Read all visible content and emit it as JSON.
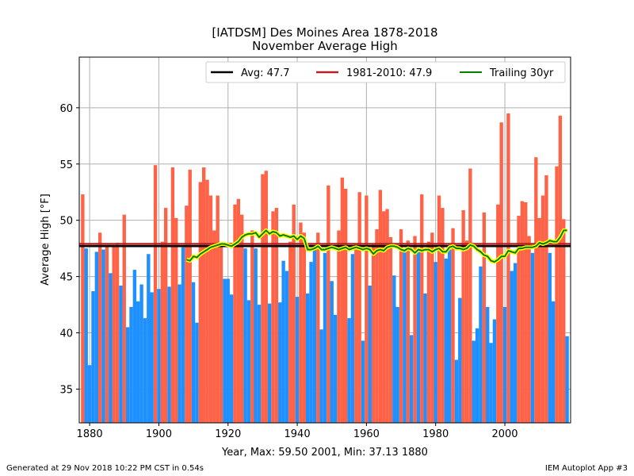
{
  "chart_data": {
    "type": "bar",
    "title": "[IATDSM] Des Moines Area 1878-2018",
    "subtitle": "November Average High",
    "xlabel": "Year, Max: 59.50 2001, Min: 37.13 1880",
    "ylabel": "Average High [°F]",
    "xlim": [
      1877,
      2019
    ],
    "ylim": [
      32,
      64.5
    ],
    "xticks": [
      1880,
      1900,
      1920,
      1940,
      1960,
      1980,
      2000
    ],
    "yticks": [
      35,
      40,
      45,
      50,
      55,
      60
    ],
    "grid": true,
    "legend_placement": "top-right",
    "colors": {
      "above": "#FF6347",
      "below": "#1E90FF",
      "avg": "#000000",
      "climo": "#B22222",
      "trailing": "#008000",
      "trailing_glow": "#FFFF00"
    },
    "legend": [
      {
        "label": "Avg: 47.7",
        "color": "#000000"
      },
      {
        "label": "1981-2010: 47.9",
        "color": "#B22222"
      },
      {
        "label": "Trailing 30yr",
        "color": "#008000"
      }
    ],
    "avg_value": 47.7,
    "climo_value": 47.9,
    "x": [
      1878,
      1879,
      1880,
      1881,
      1882,
      1883,
      1884,
      1885,
      1886,
      1887,
      1888,
      1889,
      1890,
      1891,
      1892,
      1893,
      1894,
      1895,
      1896,
      1897,
      1898,
      1899,
      1900,
      1901,
      1902,
      1903,
      1904,
      1905,
      1906,
      1907,
      1908,
      1909,
      1910,
      1911,
      1912,
      1913,
      1914,
      1915,
      1916,
      1917,
      1918,
      1919,
      1920,
      1921,
      1922,
      1923,
      1924,
      1925,
      1926,
      1927,
      1928,
      1929,
      1930,
      1931,
      1932,
      1933,
      1934,
      1935,
      1936,
      1937,
      1938,
      1939,
      1940,
      1941,
      1942,
      1943,
      1944,
      1945,
      1946,
      1947,
      1948,
      1949,
      1950,
      1951,
      1952,
      1953,
      1954,
      1955,
      1956,
      1957,
      1958,
      1959,
      1960,
      1961,
      1962,
      1963,
      1964,
      1965,
      1966,
      1967,
      1968,
      1969,
      1970,
      1971,
      1972,
      1973,
      1974,
      1975,
      1976,
      1977,
      1978,
      1979,
      1980,
      1981,
      1982,
      1983,
      1984,
      1985,
      1986,
      1987,
      1988,
      1989,
      1990,
      1991,
      1992,
      1993,
      1994,
      1995,
      1996,
      1997,
      1998,
      1999,
      2000,
      2001,
      2002,
      2003,
      2004,
      2005,
      2006,
      2007,
      2008,
      2009,
      2010,
      2011,
      2012,
      2013,
      2014,
      2015,
      2016,
      2017,
      2018
    ],
    "values": [
      52.3,
      47.5,
      37.13,
      43.7,
      47.2,
      48.9,
      47.4,
      47.8,
      45.3,
      47.8,
      48.0,
      44.2,
      50.5,
      40.5,
      42.3,
      45.6,
      42.8,
      44.3,
      41.3,
      47.0,
      43.6,
      54.9,
      43.9,
      48.1,
      51.1,
      44.1,
      54.7,
      50.2,
      44.3,
      47.6,
      51.3,
      54.5,
      44.5,
      40.9,
      53.4,
      54.7,
      53.6,
      52.2,
      49.1,
      52.2,
      47.8,
      44.8,
      44.8,
      43.4,
      51.4,
      51.9,
      50.5,
      47.5,
      42.9,
      49.1,
      47.5,
      42.5,
      54.1,
      54.4,
      42.6,
      50.8,
      51.1,
      42.7,
      46.4,
      45.5,
      48.1,
      51.4,
      43.2,
      49.8,
      48.9,
      43.5,
      46.3,
      47.5,
      48.9,
      40.3,
      47.1,
      53.1,
      44.6,
      41.6,
      49.1,
      53.8,
      52.8,
      41.3,
      47.0,
      47.9,
      52.5,
      39.3,
      52.2,
      44.2,
      47.9,
      49.2,
      52.7,
      50.8,
      51.0,
      48.5,
      45.1,
      42.3,
      49.2,
      47.2,
      48.2,
      39.8,
      48.6,
      47.5,
      52.3,
      43.5,
      48.1,
      48.9,
      46.3,
      52.2,
      51.1,
      46.6,
      47.4,
      49.3,
      37.6,
      43.1,
      50.9,
      48.2,
      54.6,
      39.3,
      40.4,
      45.9,
      50.7,
      42.3,
      39.1,
      41.2,
      51.4,
      58.7,
      42.3,
      59.5,
      45.5,
      46.2,
      50.4,
      51.7,
      51.6,
      48.6,
      47.1,
      55.6,
      50.2,
      52.2,
      54.0,
      47.1,
      42.8,
      54.8,
      59.3,
      50.1,
      39.7
    ],
    "trailing30": {
      "x": [
        1908,
        1909,
        1910,
        1911,
        1912,
        1913,
        1914,
        1915,
        1916,
        1917,
        1918,
        1919,
        1920,
        1921,
        1922,
        1923,
        1924,
        1925,
        1926,
        1927,
        1928,
        1929,
        1930,
        1931,
        1932,
        1933,
        1934,
        1935,
        1936,
        1937,
        1938,
        1939,
        1940,
        1941,
        1942,
        1943,
        1944,
        1945,
        1946,
        1947,
        1948,
        1949,
        1950,
        1951,
        1952,
        1953,
        1954,
        1955,
        1956,
        1957,
        1958,
        1959,
        1960,
        1961,
        1962,
        1963,
        1964,
        1965,
        1966,
        1967,
        1968,
        1969,
        1970,
        1971,
        1972,
        1973,
        1974,
        1975,
        1976,
        1977,
        1978,
        1979,
        1980,
        1981,
        1982,
        1983,
        1984,
        1985,
        1986,
        1987,
        1988,
        1989,
        1990,
        1991,
        1992,
        1993,
        1994,
        1995,
        1996,
        1997,
        1998,
        1999,
        2000,
        2001,
        2002,
        2003,
        2004,
        2005,
        2006,
        2007,
        2008,
        2009,
        2010,
        2011,
        2012,
        2013,
        2014,
        2015,
        2016,
        2017,
        2018
      ],
      "values": [
        46.5,
        46.4,
        46.8,
        46.7,
        47.0,
        47.2,
        47.4,
        47.6,
        47.7,
        47.8,
        47.9,
        47.9,
        47.8,
        47.7,
        47.9,
        48.1,
        48.5,
        48.7,
        48.8,
        48.8,
        48.9,
        48.5,
        48.8,
        49.1,
        48.8,
        49.0,
        48.9,
        48.6,
        48.7,
        48.6,
        48.5,
        48.6,
        48.3,
        48.6,
        48.4,
        47.4,
        47.4,
        47.5,
        47.7,
        47.4,
        47.4,
        47.5,
        47.6,
        47.5,
        47.4,
        47.5,
        47.6,
        47.4,
        47.5,
        47.6,
        47.5,
        47.4,
        47.5,
        47.4,
        47.0,
        47.3,
        47.4,
        47.3,
        47.6,
        47.7,
        47.7,
        47.6,
        47.4,
        47.3,
        47.5,
        47.4,
        47.1,
        47.4,
        47.3,
        47.4,
        47.4,
        47.2,
        47.4,
        47.5,
        47.2,
        47.2,
        47.6,
        47.7,
        47.5,
        47.5,
        47.4,
        47.5,
        47.8,
        47.7,
        47.4,
        47.2,
        46.9,
        46.8,
        46.4,
        46.3,
        46.5,
        46.8,
        46.8,
        47.3,
        47.2,
        47.1,
        47.5,
        47.5,
        47.6,
        47.6,
        47.6,
        47.7,
        48.0,
        47.9,
        48.0,
        48.2,
        48.1,
        48.1,
        48.5,
        49.1,
        49.1
      ]
    }
  },
  "footer": {
    "left": "Generated at 29 Nov 2018 10:22 PM CST in 0.54s",
    "right": "IEM Autoplot App #3"
  }
}
